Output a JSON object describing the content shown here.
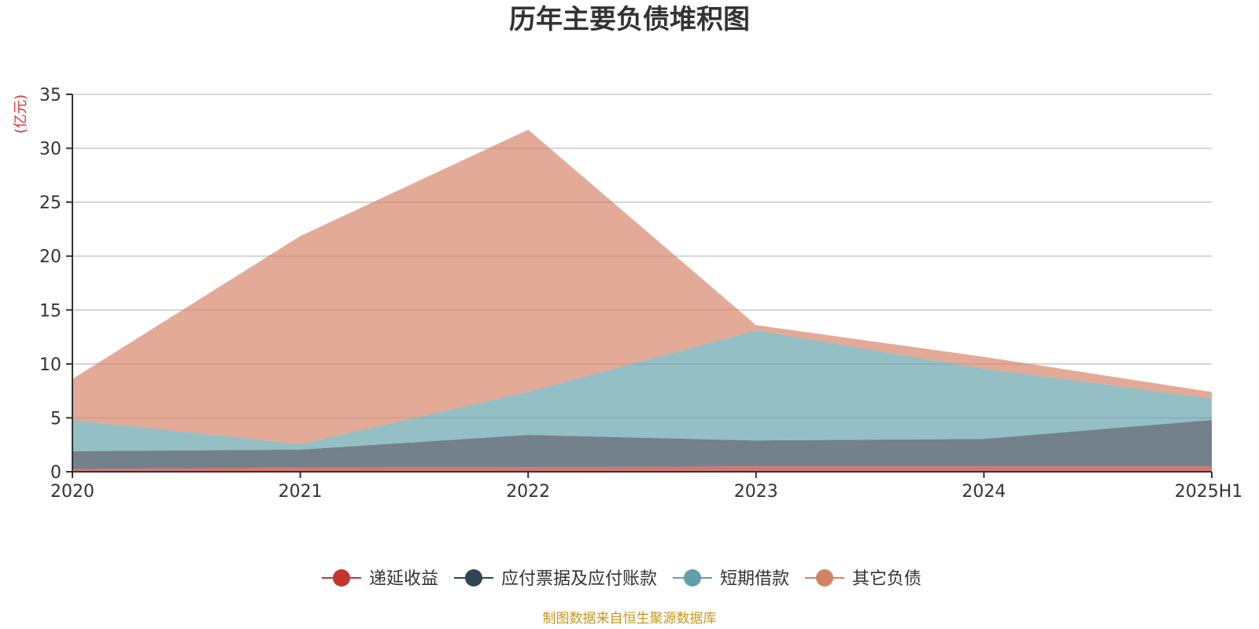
{
  "chart_data": {
    "type": "area",
    "stacked": true,
    "title": "历年主要负债堆积图",
    "unit_label": "(亿元)",
    "x": [
      "2020",
      "2021",
      "2022",
      "2023",
      "2024",
      "2025H1"
    ],
    "yticks": [
      "0",
      "5",
      "10",
      "15",
      "20",
      "25",
      "30",
      "35"
    ],
    "ylim": [
      0,
      35
    ],
    "grid": true,
    "legend_position": "bottom-center",
    "series": [
      {
        "name": "递延收益",
        "color": "#c23531",
        "values": [
          0.25,
          0.4,
          0.42,
          0.5,
          0.5,
          0.5
        ]
      },
      {
        "name": "应付票据及应付账款",
        "color": "#2f4554",
        "values": [
          1.65,
          1.65,
          3.0,
          2.4,
          2.55,
          4.3
        ]
      },
      {
        "name": "短期借款",
        "color": "#61a0a8",
        "values": [
          2.9,
          0.5,
          4.0,
          10.2,
          6.5,
          2.0
        ]
      },
      {
        "name": "其它负债",
        "color": "#d48265",
        "values": [
          3.8,
          19.3,
          24.3,
          0.5,
          1.1,
          0.6
        ]
      }
    ],
    "source": "制图数据来自恒生聚源数据库"
  }
}
